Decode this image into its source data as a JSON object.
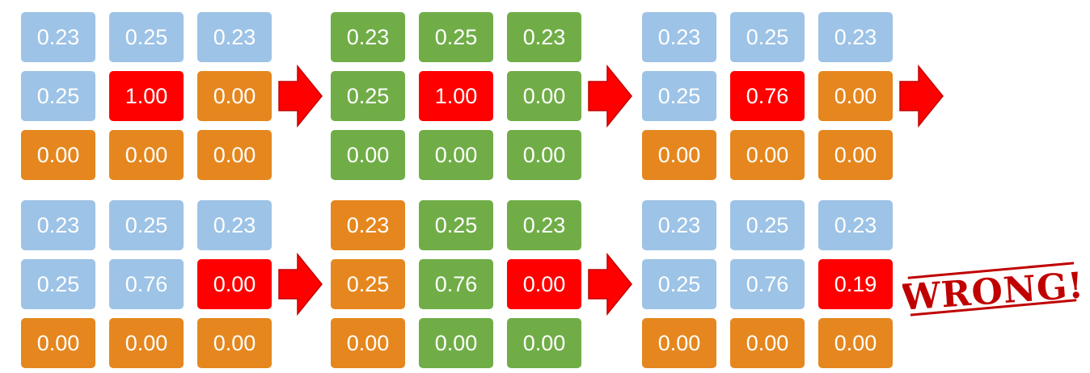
{
  "colors": {
    "blue": "#9dc3e6",
    "orange": "#e5871e",
    "green": "#70ad47",
    "red": "#ff0000",
    "arrow_fill": "#ff0000",
    "arrow_stroke": "#c00000",
    "stamp": "#c00000"
  },
  "icons": {
    "arrow": "right-arrow-icon",
    "stamp": "wrong-stamp"
  },
  "rows": [
    {
      "grids": [
        {
          "cells": [
            {
              "value": "0.23",
              "color": "blue"
            },
            {
              "value": "0.25",
              "color": "blue"
            },
            {
              "value": "0.23",
              "color": "blue"
            },
            {
              "value": "0.25",
              "color": "blue"
            },
            {
              "value": "1.00",
              "color": "red"
            },
            {
              "value": "0.00",
              "color": "orange"
            },
            {
              "value": "0.00",
              "color": "orange"
            },
            {
              "value": "0.00",
              "color": "orange"
            },
            {
              "value": "0.00",
              "color": "orange"
            }
          ]
        },
        {
          "cells": [
            {
              "value": "0.23",
              "color": "green"
            },
            {
              "value": "0.25",
              "color": "green"
            },
            {
              "value": "0.23",
              "color": "green"
            },
            {
              "value": "0.25",
              "color": "green"
            },
            {
              "value": "1.00",
              "color": "red"
            },
            {
              "value": "0.00",
              "color": "green"
            },
            {
              "value": "0.00",
              "color": "green"
            },
            {
              "value": "0.00",
              "color": "green"
            },
            {
              "value": "0.00",
              "color": "green"
            }
          ]
        },
        {
          "cells": [
            {
              "value": "0.23",
              "color": "blue"
            },
            {
              "value": "0.25",
              "color": "blue"
            },
            {
              "value": "0.23",
              "color": "blue"
            },
            {
              "value": "0.25",
              "color": "blue"
            },
            {
              "value": "0.76",
              "color": "red"
            },
            {
              "value": "0.00",
              "color": "orange"
            },
            {
              "value": "0.00",
              "color": "orange"
            },
            {
              "value": "0.00",
              "color": "orange"
            },
            {
              "value": "0.00",
              "color": "orange"
            }
          ]
        }
      ]
    },
    {
      "grids": [
        {
          "cells": [
            {
              "value": "0.23",
              "color": "blue"
            },
            {
              "value": "0.25",
              "color": "blue"
            },
            {
              "value": "0.23",
              "color": "blue"
            },
            {
              "value": "0.25",
              "color": "blue"
            },
            {
              "value": "0.76",
              "color": "blue"
            },
            {
              "value": "0.00",
              "color": "red"
            },
            {
              "value": "0.00",
              "color": "orange"
            },
            {
              "value": "0.00",
              "color": "orange"
            },
            {
              "value": "0.00",
              "color": "orange"
            }
          ]
        },
        {
          "cells": [
            {
              "value": "0.23",
              "color": "orange"
            },
            {
              "value": "0.25",
              "color": "green"
            },
            {
              "value": "0.23",
              "color": "green"
            },
            {
              "value": "0.25",
              "color": "orange"
            },
            {
              "value": "0.76",
              "color": "green"
            },
            {
              "value": "0.00",
              "color": "red"
            },
            {
              "value": "0.00",
              "color": "orange"
            },
            {
              "value": "0.00",
              "color": "green"
            },
            {
              "value": "0.00",
              "color": "green"
            }
          ]
        },
        {
          "cells": [
            {
              "value": "0.23",
              "color": "blue"
            },
            {
              "value": "0.25",
              "color": "blue"
            },
            {
              "value": "0.23",
              "color": "blue"
            },
            {
              "value": "0.25",
              "color": "blue"
            },
            {
              "value": "0.76",
              "color": "blue"
            },
            {
              "value": "0.19",
              "color": "red"
            },
            {
              "value": "0.00",
              "color": "orange"
            },
            {
              "value": "0.00",
              "color": "orange"
            },
            {
              "value": "0.00",
              "color": "orange"
            }
          ]
        }
      ]
    }
  ],
  "stamp": {
    "text": "WRONG!"
  }
}
